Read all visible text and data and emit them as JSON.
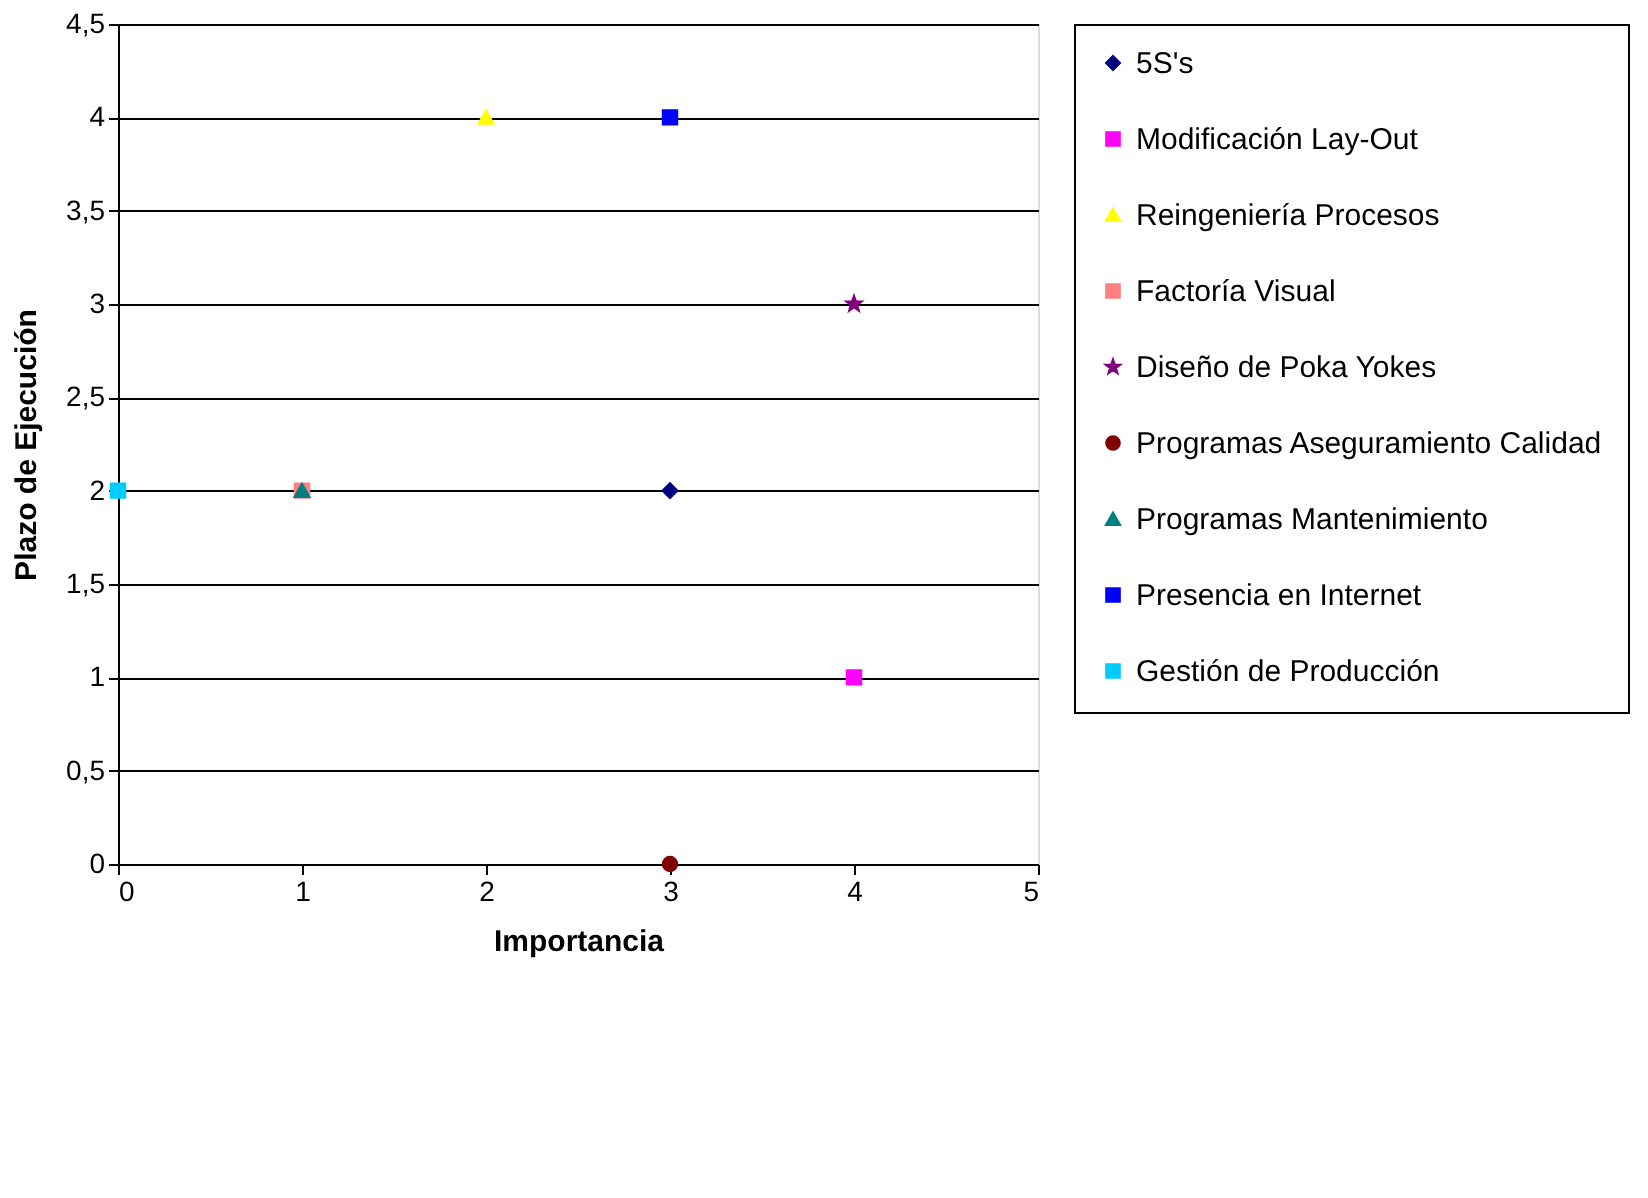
{
  "chart_data": {
    "type": "scatter",
    "xlabel": "Importancia",
    "ylabel": "Plazo de Ejecución",
    "xlim": [
      0,
      5
    ],
    "xticks": [
      0,
      1,
      2,
      3,
      4,
      5
    ],
    "ylim": [
      0,
      4.5
    ],
    "yticks": [
      0,
      {
        "value": 0.5,
        "label": "0,5"
      },
      1,
      {
        "value": 1.5,
        "label": "1,5"
      },
      2,
      {
        "value": 2.5,
        "label": "2,5"
      },
      3,
      {
        "value": 3.5,
        "label": "3,5"
      },
      4,
      {
        "value": 4.5,
        "label": "4,5"
      }
    ],
    "grid": "y",
    "legend": "right",
    "series": [
      {
        "name": "5S's",
        "color": "#000080",
        "marker": "diamond",
        "x": [
          3
        ],
        "values": [
          2
        ]
      },
      {
        "name": "Modificación Lay-Out",
        "color": "#ff00ff",
        "marker": "square",
        "x": [
          4
        ],
        "values": [
          1
        ]
      },
      {
        "name": "Reingeniería Procesos",
        "color": "#ffff00",
        "marker": "triangle",
        "x": [
          2
        ],
        "values": [
          4
        ]
      },
      {
        "name": "Factoría Visual",
        "color": "#ff8080",
        "marker": "square",
        "x": [
          1
        ],
        "values": [
          2
        ]
      },
      {
        "name": "Diseño de Poka Yokes",
        "color": "#800080",
        "marker": "star",
        "x": [
          4
        ],
        "values": [
          3
        ]
      },
      {
        "name": "Programas Aseguramiento Calidad",
        "color": "#800000",
        "marker": "circle",
        "x": [
          3
        ],
        "values": [
          0
        ]
      },
      {
        "name": "Programas Mantenimiento",
        "color": "#008080",
        "marker": "triangle",
        "x": [
          1
        ],
        "values": [
          2
        ]
      },
      {
        "name": "Presencia en Internet",
        "color": "#0000ff",
        "marker": "square",
        "x": [
          3
        ],
        "values": [
          4
        ]
      },
      {
        "name": "Gestión de Producción",
        "color": "#00ccff",
        "marker": "square",
        "x": [
          0
        ],
        "values": [
          2
        ]
      }
    ]
  }
}
